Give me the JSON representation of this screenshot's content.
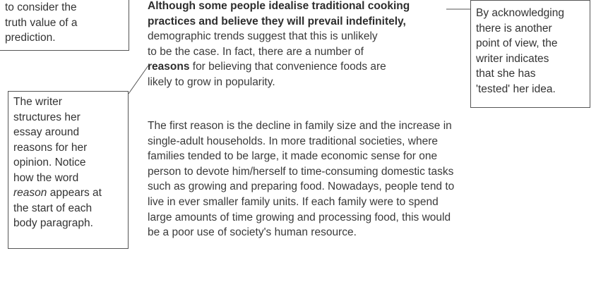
{
  "annotations": {
    "truth_value": [
      "to consider the",
      "truth value of a",
      "prediction."
    ],
    "reasons": {
      "lines_a": [
        "The writer",
        "structures her",
        "essay around",
        "reasons for her",
        "opinion. Notice",
        "how the word"
      ],
      "italic_word": "reason",
      "italic_rest": " appears at",
      "lines_b": [
        "the start of each",
        "body paragraph."
      ]
    },
    "other_view": [
      "By acknowledging",
      "there is another",
      "point of view, the",
      "writer indicates",
      "that she has",
      "'tested' her idea."
    ]
  },
  "essay": {
    "p1": {
      "l1_bold": "Although some people idealise traditional cooking",
      "l2_bold": "practices and believe they will prevail indefinitely,",
      "l3": "demographic trends suggest that this is unlikely",
      "l4": "to be the case. In fact, there are a number of",
      "l5_bold": "reasons",
      "l5_rest": " for believing that convenience foods are",
      "l6": "likely to grow in popularity."
    },
    "p2": "The first reason is the decline in family size and the increase in single-adult households. In more traditional societies, where families tended to be large, it made economic sense for one person to devote him/herself to time-consuming domestic tasks such as growing and preparing food. Nowadays, people tend to live in ever smaller family units. If each family were to spend large amounts of time growing and processing food, this would be a poor use of society's human resource."
  }
}
